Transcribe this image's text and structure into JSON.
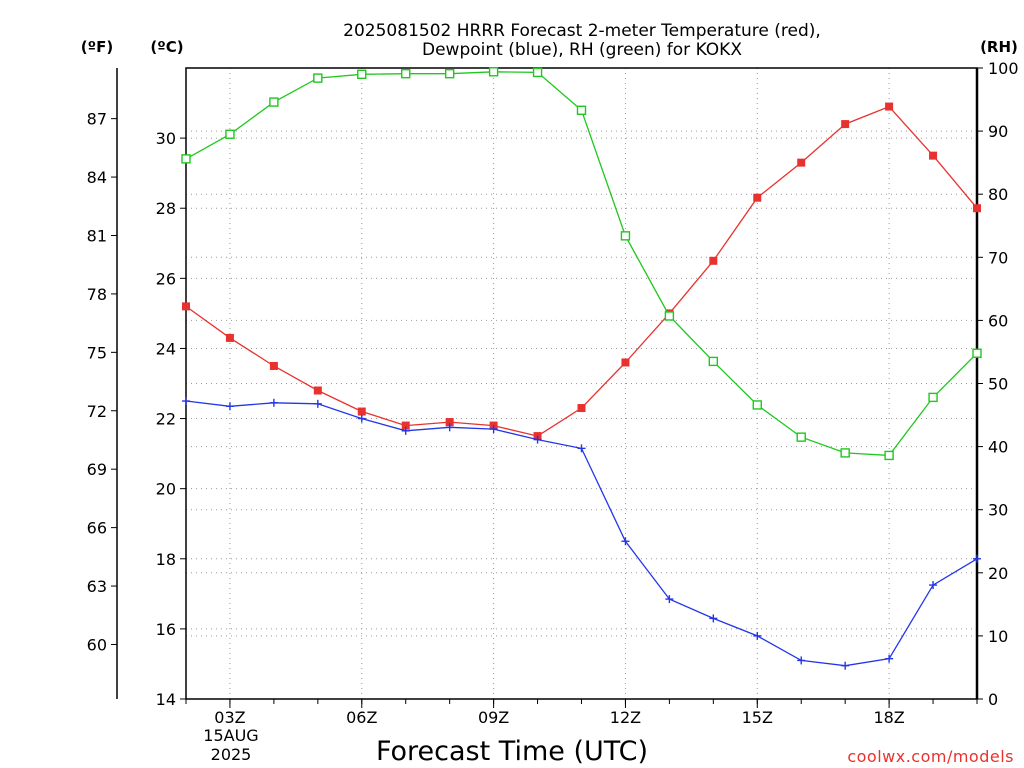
{
  "chart_data": {
    "type": "line",
    "title_line1": "2025081502 HRRR Forecast 2-meter Temperature (red),",
    "title_line2": "Dewpoint (blue), RH (green) for KOKX",
    "left_outer_unit": "(ºF)",
    "left_inner_unit": "(ºC)",
    "right_unit": "(RH)",
    "xlabel": "Forecast Time (UTC)",
    "watermark": "coolwx.com/models",
    "date_label_1": "15AUG",
    "date_label_2": "2025",
    "x_ticks": [
      {
        "hour": 3,
        "label": "03Z"
      },
      {
        "hour": 6,
        "label": "06Z"
      },
      {
        "hour": 9,
        "label": "09Z"
      },
      {
        "hour": 12,
        "label": "12Z"
      },
      {
        "hour": 15,
        "label": "15Z"
      },
      {
        "hour": 18,
        "label": "18Z"
      }
    ],
    "xlim": [
      2,
      20
    ],
    "ylim_c": [
      14,
      32
    ],
    "y_ticks_c": [
      14,
      16,
      18,
      20,
      22,
      24,
      26,
      28,
      30
    ],
    "y_ticks_f": [
      60,
      63,
      66,
      69,
      72,
      75,
      78,
      81,
      84,
      87
    ],
    "ylim_rh": [
      0,
      100
    ],
    "y_ticks_rh": [
      0,
      10,
      20,
      30,
      40,
      50,
      60,
      70,
      80,
      90,
      100
    ],
    "grid": true,
    "hours": [
      2,
      3,
      4,
      5,
      6,
      7,
      8,
      9,
      10,
      11,
      12,
      13,
      14,
      15,
      16,
      17,
      18,
      19,
      20
    ],
    "series": [
      {
        "name": "Temperature",
        "color": "#e8322f",
        "axis": "c",
        "marker": "filled-square",
        "values": [
          25.2,
          24.3,
          23.5,
          22.8,
          22.2,
          21.8,
          21.9,
          21.8,
          21.5,
          22.3,
          23.6,
          25.0,
          26.5,
          28.3,
          29.3,
          30.4,
          30.9,
          29.5,
          28.0
        ]
      },
      {
        "name": "Dewpoint",
        "color": "#2336e8",
        "axis": "c",
        "marker": "plus",
        "values": [
          22.5,
          22.35,
          22.45,
          22.42,
          22.0,
          21.65,
          21.75,
          21.7,
          21.4,
          21.15,
          18.5,
          16.85,
          16.3,
          15.8,
          15.1,
          14.95,
          15.15,
          17.25,
          18.0
        ]
      },
      {
        "name": "RH",
        "color": "#1ec81e",
        "axis": "rh",
        "marker": "open-square",
        "values": [
          85.6,
          89.5,
          94.6,
          98.4,
          99.0,
          99.1,
          99.1,
          99.4,
          99.3,
          93.3,
          73.4,
          60.7,
          53.5,
          46.6,
          41.5,
          39.0,
          38.6,
          47.8,
          54.8
        ]
      }
    ]
  },
  "colors": {
    "background": "#ffffff",
    "grid": "#9a9a9a",
    "axis": "#000000",
    "watermark": "#e8322f"
  }
}
